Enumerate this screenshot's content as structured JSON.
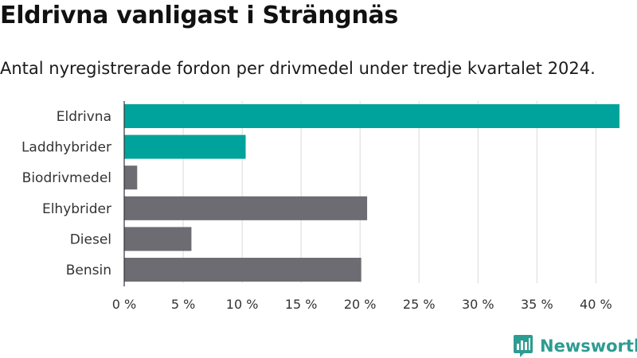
{
  "title": "Eldrivna vanligast i Strängnäs",
  "subtitle": "Antal nyregistrerade fordon per drivmedel under tredje kvartalet 2024.",
  "brand": "Newsworthy",
  "colors": {
    "highlight": "#00a39b",
    "default": "#6d6c72",
    "grid": "#d9d9d9",
    "brand": "#2d9c91"
  },
  "chart_data": {
    "type": "bar",
    "orientation": "horizontal",
    "categories": [
      "Eldrivna",
      "Laddhybrider",
      "Biodrivmedel",
      "Elhybrider",
      "Diesel",
      "Bensin"
    ],
    "values": [
      42.0,
      10.3,
      1.1,
      20.6,
      5.7,
      20.1
    ],
    "highlighted": [
      true,
      true,
      false,
      false,
      false,
      false
    ],
    "xlim": [
      0,
      42
    ],
    "xticks": [
      0,
      5,
      10,
      15,
      20,
      25,
      30,
      35,
      40
    ],
    "xtick_labels": [
      "0 %",
      "5 %",
      "10 %",
      "15 %",
      "20 %",
      "25 %",
      "30 %",
      "35 %",
      "40 %"
    ],
    "grid": true
  }
}
